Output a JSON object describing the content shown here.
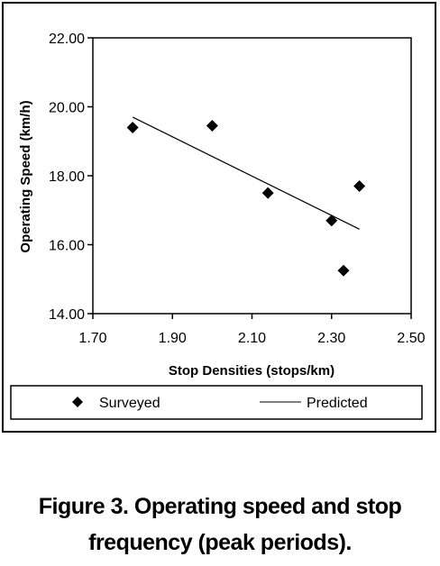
{
  "chart_data": {
    "type": "scatter",
    "xlabel": "Stop Densities (stops/km)",
    "ylabel": "Operating Speed (km/h)",
    "xlim": [
      1.7,
      2.5
    ],
    "ylim": [
      14.0,
      22.0
    ],
    "x_ticks": [
      "1.70",
      "1.90",
      "2.10",
      "2.30",
      "2.50"
    ],
    "y_ticks": [
      "14.00",
      "16.00",
      "18.00",
      "20.00",
      "22.00"
    ],
    "grid": false,
    "legend_position": "bottom",
    "series": [
      {
        "name": "Surveyed",
        "kind": "scatter",
        "marker": "diamond",
        "points": [
          {
            "x": 1.8,
            "y": 19.4
          },
          {
            "x": 2.0,
            "y": 19.45
          },
          {
            "x": 2.14,
            "y": 17.5
          },
          {
            "x": 2.3,
            "y": 16.7
          },
          {
            "x": 2.33,
            "y": 15.25
          },
          {
            "x": 2.37,
            "y": 17.7
          }
        ]
      },
      {
        "name": "Predicted",
        "kind": "line",
        "points": [
          {
            "x": 1.8,
            "y": 19.7
          },
          {
            "x": 2.37,
            "y": 16.45
          }
        ]
      }
    ]
  },
  "caption": {
    "line1": "Figure 3. Operating speed and stop",
    "line2": "frequency (peak periods)."
  }
}
